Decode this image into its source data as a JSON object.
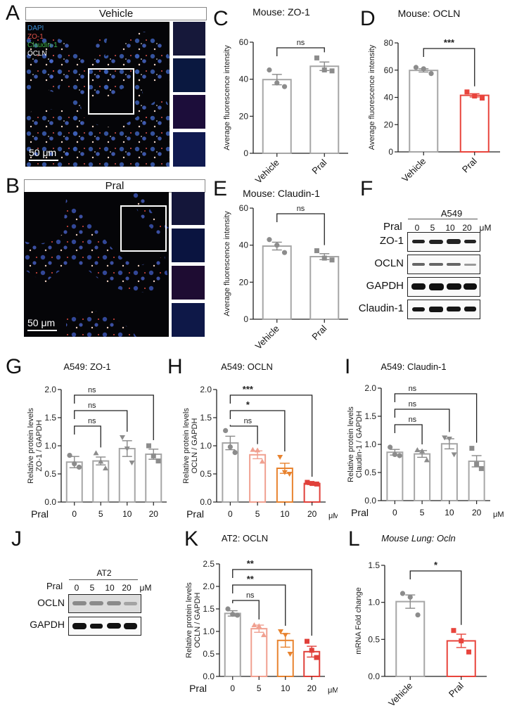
{
  "panels": {
    "A": {
      "letter": "A",
      "condition": "Vehicle",
      "legend": [
        {
          "label": "DAPI",
          "color": "#3b8fd6"
        },
        {
          "label": "ZO-1",
          "color": "#e0524a"
        },
        {
          "label": "Claudin-1",
          "color": "#3fb34a"
        },
        {
          "label": "OCLN",
          "color": "#ffffff"
        }
      ],
      "scale": "50 μm"
    },
    "B": {
      "letter": "B",
      "condition": "Pral",
      "scale": "50 μm"
    },
    "F": {
      "letter": "F",
      "cell": "A549",
      "treatment": "Pral",
      "unit": "μM",
      "lanes": [
        "0",
        "5",
        "10",
        "20"
      ],
      "rows": [
        "ZO-1",
        "OCLN",
        "GAPDH",
        "Claudin-1"
      ]
    },
    "J": {
      "letter": "J",
      "cell": "AT2",
      "treatment": "Pral",
      "unit": "μM",
      "lanes": [
        "0",
        "5",
        "10",
        "20"
      ],
      "rows": [
        "OCLN",
        "GAPDH"
      ]
    }
  },
  "colors": {
    "grey": "#a6a6a6",
    "dot_grey": "#8c8c8c",
    "pink": "#f0a090",
    "orange": "#e8832f",
    "red": "#e0403a",
    "red_l": "#e8443c"
  },
  "chart_data": [
    {
      "panel": "C",
      "type": "bar",
      "title": "Mouse: ZO-1",
      "ylabel": "Average fluorescence intensity",
      "categories": [
        "Vehicle",
        "Pral"
      ],
      "values": [
        39.8,
        47
      ],
      "sem": [
        2.8,
        2.3
      ],
      "points": [
        [
          45,
          38,
          36
        ],
        [
          51.5,
          45,
          44.5
        ]
      ],
      "ylim": [
        0,
        60
      ],
      "yticks": [
        0,
        20,
        40,
        60
      ],
      "significance": [
        {
          "from": 0,
          "to": 1,
          "label": "ns"
        }
      ]
    },
    {
      "panel": "D",
      "type": "bar",
      "title": "Mouse: OCLN",
      "ylabel": "Average fluorescence intensity",
      "categories": [
        "Vehicle",
        "Pral"
      ],
      "values": [
        59.8,
        41.5
      ],
      "sem": [
        1.2,
        1.2
      ],
      "points": [
        [
          62,
          61,
          57.5
        ],
        [
          44,
          41,
          39.5
        ]
      ],
      "ylim": [
        0,
        80
      ],
      "yticks": [
        0,
        20,
        40,
        60,
        80
      ],
      "significance": [
        {
          "from": 0,
          "to": 1,
          "label": "***"
        }
      ]
    },
    {
      "panel": "E",
      "type": "bar",
      "title": "Mouse: Claudin-1",
      "ylabel": "Average fluorescence intensity",
      "categories": [
        "Vehicle",
        "Pral"
      ],
      "values": [
        39.5,
        33.8
      ],
      "sem": [
        2.1,
        1.6
      ],
      "points": [
        [
          43,
          40,
          36
        ],
        [
          37,
          33,
          32
        ]
      ],
      "ylim": [
        0,
        60
      ],
      "yticks": [
        0,
        20,
        40,
        60
      ],
      "significance": [
        {
          "from": 0,
          "to": 1,
          "label": "ns"
        }
      ]
    },
    {
      "panel": "G",
      "type": "bar",
      "title": "A549: ZO-1",
      "ylabel": "Relative protein levels\nZO-1 / GAPDH",
      "xlabel": "Pral",
      "xunit": "μM",
      "categories": [
        "0",
        "5",
        "10",
        "20"
      ],
      "values": [
        0.71,
        0.73,
        0.95,
        0.85
      ],
      "sem": [
        0.1,
        0.07,
        0.14,
        0.09
      ],
      "points": [
        [
          0.83,
          0.68,
          0.62
        ],
        [
          0.87,
          0.72,
          0.6
        ],
        [
          1.15,
          0.95,
          0.7
        ],
        [
          1.0,
          0.82,
          0.73
        ]
      ],
      "ylim": [
        0,
        2.0
      ],
      "yticks": [
        0,
        0.5,
        1.0,
        1.5,
        2.0
      ],
      "significance": [
        {
          "from": 0,
          "to": 1,
          "label": "ns"
        },
        {
          "from": 0,
          "to": 2,
          "label": "ns"
        },
        {
          "from": 0,
          "to": 3,
          "label": "ns"
        }
      ]
    },
    {
      "panel": "H",
      "type": "bar",
      "title": "A549: OCLN",
      "ylabel": "Relative protein levels\nOCLN / GAPDH",
      "xlabel": "Pral",
      "xunit": "μM",
      "categories": [
        "0",
        "5",
        "10",
        "20"
      ],
      "values": [
        1.05,
        0.84,
        0.6,
        0.33
      ],
      "sem": [
        0.12,
        0.07,
        0.09,
        0.02
      ],
      "points": [
        [
          1.27,
          0.98,
          0.88
        ],
        [
          0.93,
          0.92,
          0.72
        ],
        [
          0.8,
          0.53,
          0.5
        ],
        [
          0.35,
          0.33,
          0.32
        ]
      ],
      "ylim": [
        0,
        2.0
      ],
      "yticks": [
        0,
        0.5,
        1.0,
        1.5,
        2.0
      ],
      "significance": [
        {
          "from": 0,
          "to": 1,
          "label": "ns"
        },
        {
          "from": 0,
          "to": 2,
          "label": "*"
        },
        {
          "from": 0,
          "to": 3,
          "label": "***"
        }
      ]
    },
    {
      "panel": "I",
      "type": "bar",
      "title": "A549: Claudin-1",
      "ylabel": "Relative protein levels\nClaudin-1 / GAPDH",
      "xlabel": "Pral",
      "xunit": "μM",
      "categories": [
        "0",
        "5",
        "10",
        "20"
      ],
      "values": [
        0.86,
        0.83,
        1.01,
        0.7
      ],
      "sem": [
        0.05,
        0.06,
        0.09,
        0.1
      ],
      "points": [
        [
          0.95,
          0.82,
          0.8
        ],
        [
          0.9,
          0.88,
          0.72
        ],
        [
          1.12,
          1.1,
          0.82
        ],
        [
          0.93,
          0.65,
          0.57
        ]
      ],
      "ylim": [
        0,
        2.0
      ],
      "yticks": [
        0,
        0.5,
        1.0,
        1.5,
        2.0
      ],
      "significance": [
        {
          "from": 0,
          "to": 1,
          "label": "ns"
        },
        {
          "from": 0,
          "to": 2,
          "label": "ns"
        },
        {
          "from": 0,
          "to": 3,
          "label": "ns"
        }
      ]
    },
    {
      "panel": "K",
      "type": "bar",
      "title": "AT2: OCLN",
      "ylabel": "Relative protein levels\nOCLN / GAPDH",
      "xlabel": "Pral",
      "xunit": "μM",
      "categories": [
        "0",
        "5",
        "10",
        "20"
      ],
      "values": [
        1.4,
        1.06,
        0.8,
        0.55
      ],
      "sem": [
        0.06,
        0.08,
        0.15,
        0.12
      ],
      "points": [
        [
          1.5,
          1.38,
          1.36
        ],
        [
          1.14,
          1.12,
          0.92
        ],
        [
          1.0,
          0.92,
          0.5
        ],
        [
          0.78,
          0.58,
          0.42
        ]
      ],
      "ylim": [
        0,
        2.5
      ],
      "yticks": [
        0,
        0.5,
        1.0,
        1.5,
        2.0,
        2.5
      ],
      "significance": [
        {
          "from": 0,
          "to": 1,
          "label": "ns"
        },
        {
          "from": 0,
          "to": 2,
          "label": "**"
        },
        {
          "from": 0,
          "to": 3,
          "label": "**"
        }
      ]
    },
    {
      "panel": "L",
      "type": "bar",
      "title": "Mouse Lung: Ocln",
      "ylabel": "mRNA Fold change",
      "categories": [
        "Vehicle",
        "Pral"
      ],
      "values": [
        1.01,
        0.48
      ],
      "sem": [
        0.09,
        0.09
      ],
      "points": [
        [
          1.12,
          1.07,
          0.83
        ],
        [
          0.62,
          0.48,
          0.33
        ]
      ],
      "ylim": [
        0,
        1.5
      ],
      "yticks": [
        0,
        0.5,
        1.0,
        1.5
      ],
      "significance": [
        {
          "from": 0,
          "to": 1,
          "label": "*"
        }
      ]
    }
  ]
}
